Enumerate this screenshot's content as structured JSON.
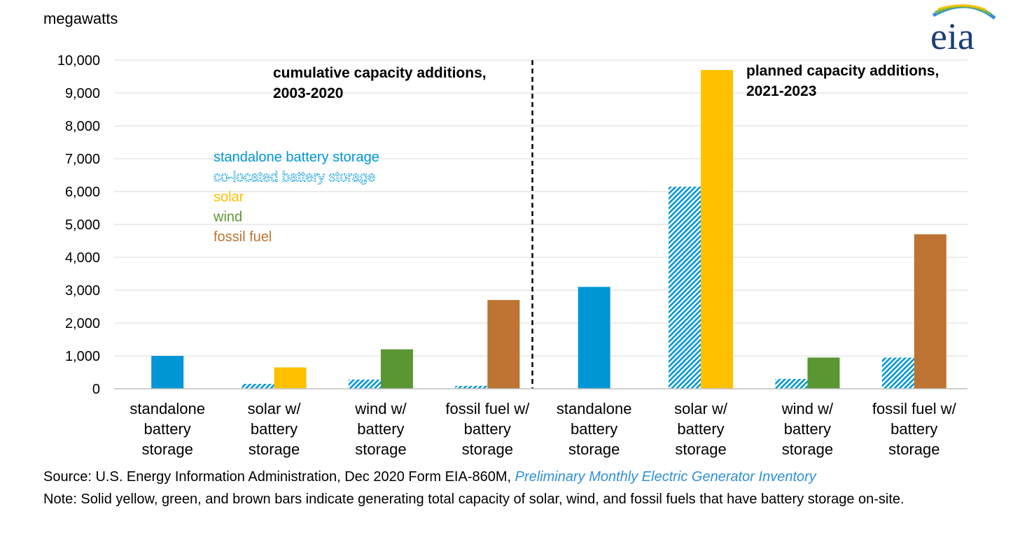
{
  "logo": {
    "text": "eia"
  },
  "footer": {
    "source_prefix": "Source: U.S. Energy Information Administration, Dec 2020 Form EIA-860M, ",
    "source_link": "Preliminary Monthly Electric Generator Inventory",
    "note": "Note: Solid yellow, green, and brown bars indicate generating total capacity of solar, wind, and fossil fuels that have battery storage on-site."
  },
  "chart_data": {
    "type": "bar",
    "ylabel": "megawatts",
    "ylim": [
      0,
      10000
    ],
    "yticks": [
      0,
      1000,
      2000,
      3000,
      4000,
      5000,
      6000,
      7000,
      8000,
      9000,
      10000
    ],
    "ytick_labels": [
      "0",
      "1,000",
      "2,000",
      "3,000",
      "4,000",
      "5,000",
      "6,000",
      "7,000",
      "8,000",
      "9,000",
      "10,000"
    ],
    "grid": true,
    "periods": [
      {
        "label_lines": [
          "cumulative capacity additions,",
          "2003-2020"
        ]
      },
      {
        "label_lines": [
          "planned capacity additions,",
          "2021-2023"
        ]
      }
    ],
    "categories": [
      [
        "standalone",
        "battery",
        "storage"
      ],
      [
        "solar w/",
        "battery",
        "storage"
      ],
      [
        "wind w/",
        "battery",
        "storage"
      ],
      [
        "fossil fuel w/",
        "battery",
        "storage"
      ],
      [
        "standalone",
        "battery",
        "storage"
      ],
      [
        "solar w/",
        "battery",
        "storage"
      ],
      [
        "wind w/",
        "battery",
        "storage"
      ],
      [
        "fossil fuel w/",
        "battery",
        "storage"
      ]
    ],
    "legend": [
      {
        "name": "standalone battery storage",
        "color": "#0096d6",
        "pattern": "solid"
      },
      {
        "name": "co-located battery storage",
        "color": "#0096d6",
        "pattern": "hatched"
      },
      {
        "name": "solar",
        "color": "#ffc000",
        "pattern": "solid"
      },
      {
        "name": "wind",
        "color": "#5a9632",
        "pattern": "solid"
      },
      {
        "name": "fossil fuel",
        "color": "#bd7332",
        "pattern": "solid"
      }
    ],
    "bars": [
      {
        "category": 0,
        "series": "standalone battery storage",
        "value": 1000
      },
      {
        "category": 1,
        "series": "co-located battery storage",
        "value": 150
      },
      {
        "category": 1,
        "series": "solar",
        "value": 650
      },
      {
        "category": 2,
        "series": "co-located battery storage",
        "value": 280
      },
      {
        "category": 2,
        "series": "wind",
        "value": 1200
      },
      {
        "category": 3,
        "series": "co-located battery storage",
        "value": 90
      },
      {
        "category": 3,
        "series": "fossil fuel",
        "value": 2700
      },
      {
        "category": 4,
        "series": "standalone battery storage",
        "value": 3100
      },
      {
        "category": 5,
        "series": "co-located battery storage",
        "value": 6150
      },
      {
        "category": 5,
        "series": "solar",
        "value": 9700
      },
      {
        "category": 6,
        "series": "co-located battery storage",
        "value": 300
      },
      {
        "category": 6,
        "series": "wind",
        "value": 950
      },
      {
        "category": 7,
        "series": "co-located battery storage",
        "value": 950
      },
      {
        "category": 7,
        "series": "fossil fuel",
        "value": 4700
      }
    ]
  }
}
